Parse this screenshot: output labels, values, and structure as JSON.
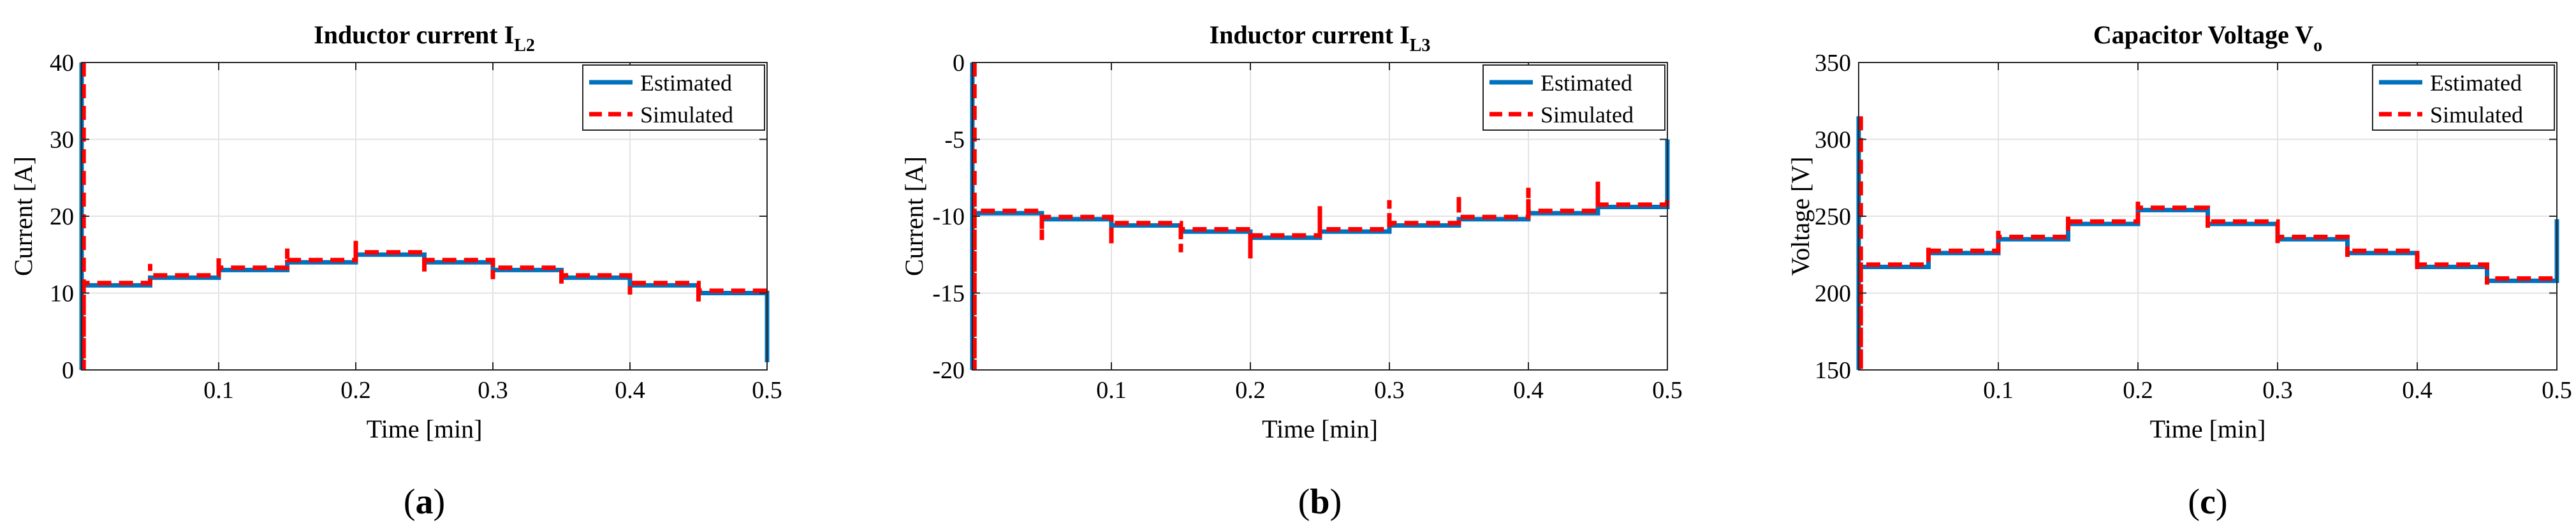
{
  "chart_data": [
    {
      "type": "line",
      "title": "Inductor current I",
      "title_subscript": "L2",
      "xlabel": "Time [min]",
      "ylabel": "Current [A]",
      "xlim": [
        0,
        0.5
      ],
      "ylim": [
        0,
        40
      ],
      "xticks": [
        0.1,
        0.2,
        0.3,
        0.4,
        0.5
      ],
      "xtick_labels": [
        "0.1",
        "0.2",
        "0.3",
        "0.4",
        "0.5"
      ],
      "yticks": [
        0,
        10,
        20,
        30,
        40
      ],
      "ytick_labels": [
        "0",
        "10",
        "20",
        "30",
        "40"
      ],
      "grid": true,
      "legend_position": "top-right",
      "caption_letter": "a",
      "steps": [
        [
          0,
          0.05,
          11
        ],
        [
          0.05,
          0.1,
          12
        ],
        [
          0.1,
          0.15,
          13
        ],
        [
          0.15,
          0.2,
          14
        ],
        [
          0.2,
          0.25,
          15
        ],
        [
          0.25,
          0.3,
          14
        ],
        [
          0.3,
          0.35,
          13
        ],
        [
          0.35,
          0.4,
          12
        ],
        [
          0.4,
          0.45,
          11
        ],
        [
          0.45,
          0.5,
          10
        ]
      ],
      "start_transient": [
        0,
        40
      ],
      "end_estimated": 1,
      "sim_offset": 0.3,
      "sim_spike": 1.5,
      "sim_end_offset": 0.5,
      "series": [
        {
          "name": "Estimated",
          "color": "#0072BD",
          "style": "solid"
        },
        {
          "name": "Simulated",
          "color": "#FF0000",
          "style": "dashed"
        }
      ]
    },
    {
      "type": "line",
      "title": "Inductor current I",
      "title_subscript": "L3",
      "xlabel": "Time [min]",
      "ylabel": "Current [A]",
      "xlim": [
        0,
        0.5
      ],
      "ylim": [
        -20,
        0
      ],
      "xticks": [
        0.1,
        0.2,
        0.3,
        0.4,
        0.5
      ],
      "xtick_labels": [
        "0.1",
        "0.2",
        "0.3",
        "0.4",
        "0.5"
      ],
      "yticks": [
        -20,
        -15,
        -10,
        -5,
        0
      ],
      "ytick_labels": [
        "-20",
        "-15",
        "-10",
        "-5",
        "0"
      ],
      "grid": true,
      "legend_position": "top-right",
      "caption_letter": "b",
      "steps": [
        [
          0,
          0.05,
          -9.8
        ],
        [
          0.05,
          0.1,
          -10.2
        ],
        [
          0.1,
          0.15,
          -10.6
        ],
        [
          0.15,
          0.2,
          -11
        ],
        [
          0.2,
          0.25,
          -11.4
        ],
        [
          0.25,
          0.3,
          -11
        ],
        [
          0.3,
          0.35,
          -10.6
        ],
        [
          0.35,
          0.4,
          -10.2
        ],
        [
          0.4,
          0.45,
          -9.8
        ],
        [
          0.45,
          0.5,
          -9.4
        ]
      ],
      "start_transient": [
        -20,
        0
      ],
      "end_estimated": -5,
      "sim_offset": 0.15,
      "sim_spike": 1.5,
      "sim_end_offset": 0.3,
      "series": [
        {
          "name": "Estimated",
          "color": "#0072BD",
          "style": "solid"
        },
        {
          "name": "Simulated",
          "color": "#FF0000",
          "style": "dashed"
        }
      ]
    },
    {
      "type": "line",
      "title": "Capacitor Voltage V",
      "title_subscript": "o",
      "xlabel": "Time [min]",
      "ylabel": "Voltage [V]",
      "xlim": [
        0,
        0.5
      ],
      "ylim": [
        150,
        350
      ],
      "xticks": [
        0.1,
        0.2,
        0.3,
        0.4,
        0.5
      ],
      "xtick_labels": [
        "0.1",
        "0.2",
        "0.3",
        "0.4",
        "0.5"
      ],
      "yticks": [
        150,
        200,
        250,
        300,
        350
      ],
      "ytick_labels": [
        "150",
        "200",
        "250",
        "300",
        "350"
      ],
      "grid": true,
      "legend_position": "top-right",
      "caption_letter": "c",
      "steps": [
        [
          0,
          0.05,
          217
        ],
        [
          0.05,
          0.1,
          226
        ],
        [
          0.1,
          0.15,
          235
        ],
        [
          0.15,
          0.2,
          245
        ],
        [
          0.2,
          0.25,
          254
        ],
        [
          0.25,
          0.3,
          245
        ],
        [
          0.3,
          0.35,
          235
        ],
        [
          0.35,
          0.4,
          226
        ],
        [
          0.4,
          0.45,
          217
        ],
        [
          0.45,
          0.5,
          208
        ]
      ],
      "start_transient": [
        150,
        315
      ],
      "end_estimated": 248,
      "sim_offset": 1.5,
      "sim_spike": 4,
      "sim_end_offset": 0,
      "series": [
        {
          "name": "Estimated",
          "color": "#0072BD",
          "style": "solid"
        },
        {
          "name": "Simulated",
          "color": "#FF0000",
          "style": "dashed"
        }
      ]
    }
  ]
}
